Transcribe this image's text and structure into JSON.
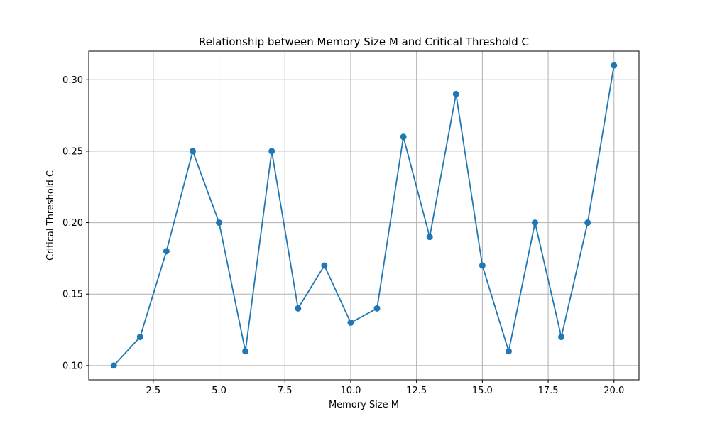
{
  "chart_data": {
    "type": "line",
    "title": "Relationship between Memory Size M and Critical Threshold C",
    "xlabel": "Memory Size M",
    "ylabel": "Critical Threshold C",
    "xlim": [
      0.05,
      20.95
    ],
    "ylim": [
      0.09,
      0.32
    ],
    "grid": true,
    "marker": "circle",
    "color": "#1f77b4",
    "x_ticks": [
      2.5,
      5.0,
      7.5,
      10.0,
      12.5,
      15.0,
      17.5,
      20.0
    ],
    "x_tick_labels": [
      "2.5",
      "5.0",
      "7.5",
      "10.0",
      "12.5",
      "15.0",
      "17.5",
      "20.0"
    ],
    "y_ticks": [
      0.1,
      0.15,
      0.2,
      0.25,
      0.3
    ],
    "y_tick_labels": [
      "0.10",
      "0.15",
      "0.20",
      "0.25",
      "0.30"
    ],
    "x": [
      1,
      2,
      3,
      4,
      5,
      6,
      7,
      8,
      9,
      10,
      11,
      12,
      13,
      14,
      15,
      16,
      17,
      18,
      19,
      20
    ],
    "y": [
      0.1,
      0.12,
      0.18,
      0.25,
      0.2,
      0.11,
      0.25,
      0.14,
      0.17,
      0.13,
      0.14,
      0.26,
      0.19,
      0.29,
      0.17,
      0.11,
      0.2,
      0.12,
      0.2,
      0.31
    ]
  }
}
